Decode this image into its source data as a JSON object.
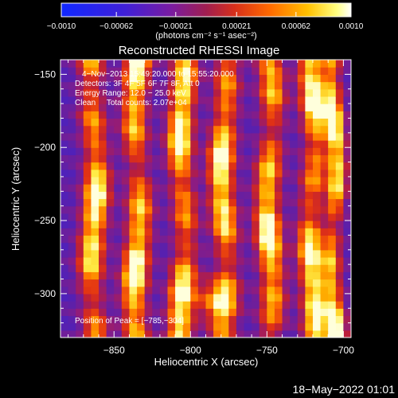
{
  "chart_data": {
    "type": "heatmap",
    "title": "Reconstructed RHESSI Image",
    "xlabel": "Heliocentric X (arcsec)",
    "ylabel": "Heliocentric Y (arcsec)",
    "xlim": [
      -885,
      -695
    ],
    "ylim": [
      -330,
      -140
    ],
    "x_ticks": [
      -850,
      -800,
      -750,
      -700
    ],
    "y_ticks": [
      -150,
      -200,
      -250,
      -300
    ],
    "x_tick_labels": [
      "−850",
      "−800",
      "−750",
      "−700"
    ],
    "y_tick_labels": [
      "−150",
      "−200",
      "−250",
      "−300"
    ],
    "colorbar": {
      "min": -0.001,
      "max": 0.001,
      "tick_values": [
        -0.001,
        -0.00062,
        -0.00021,
        0.00021,
        0.00062,
        0.001
      ],
      "tick_labels": [
        "−0.0010",
        "−0.00062",
        "−0.00021",
        "0.00021",
        "0.00062",
        "0.0010"
      ],
      "unit_label": "(photons cm⁻² s⁻¹ asec⁻²)",
      "colormap": [
        "#1028ff",
        "#5a22c0",
        "#8a1c8a",
        "#c8201e",
        "#ff5a00",
        "#ffb000",
        "#ffff70",
        "#ffffff"
      ]
    },
    "annotations": {
      "time_range": "4−Nov−2013 15:49:20.000 to 15:55:20.000",
      "detectors": "Detectors: 3F 4F 5F 6F 7F 8F, Att 0",
      "energy_range": "Energy Range: 12.0 − 25.0 keV",
      "method_counts": "Clean     Total counts: 2.07e+04",
      "peak_position": "Position of Peak = [−785,−304]"
    },
    "peak": {
      "x": -785,
      "y": -304
    },
    "bright_bands_x": [
      -863,
      -835,
      -805,
      -778,
      -748,
      -720,
      -706
    ],
    "footer_date": "18−May−2022 01:01"
  }
}
